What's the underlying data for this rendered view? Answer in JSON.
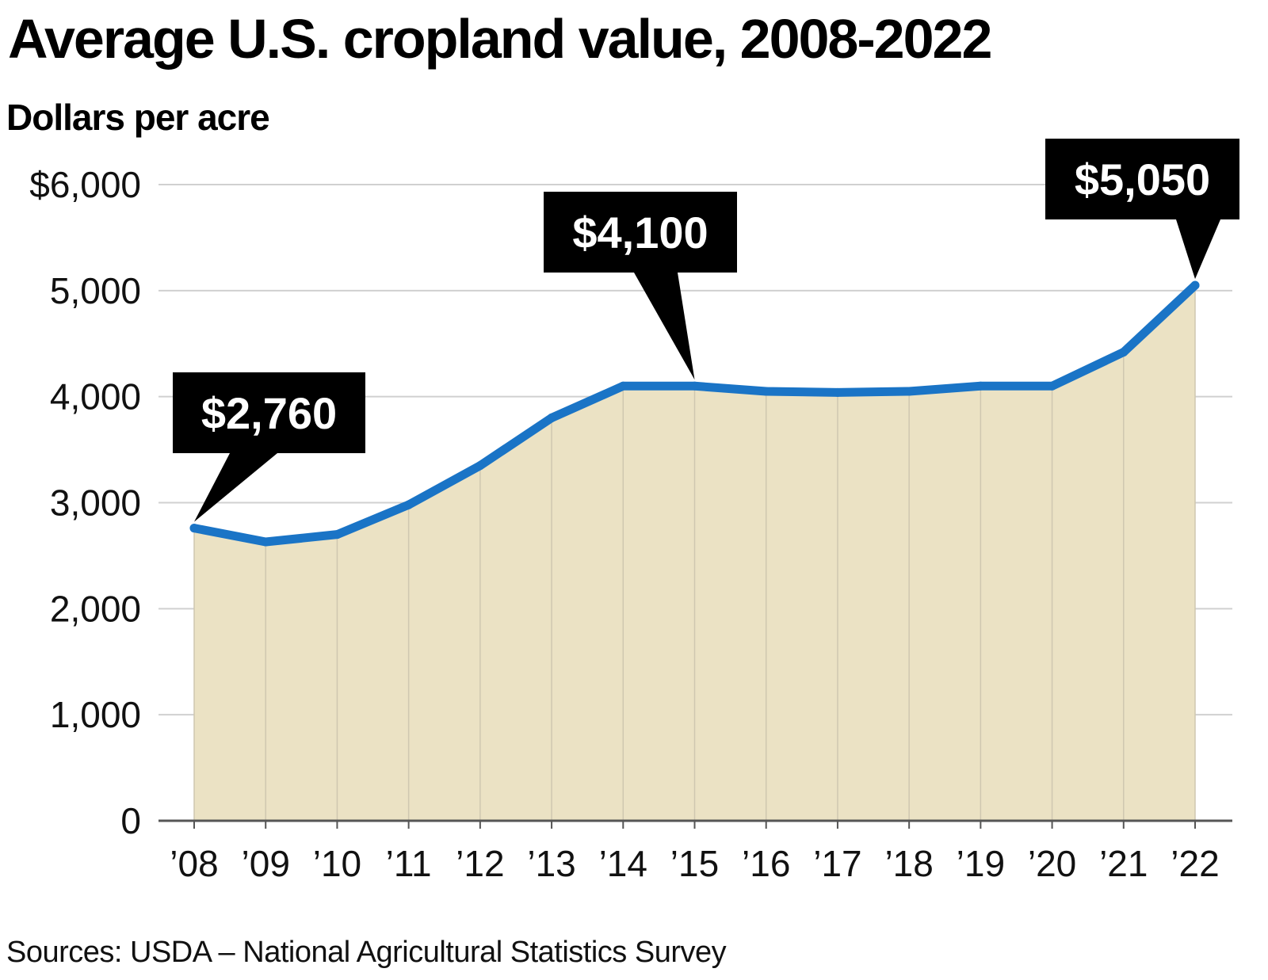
{
  "header": {
    "title": "Average U.S. cropland value, 2008-2022",
    "subtitle": "Dollars per acre"
  },
  "footer": {
    "source": "Sources: USDA – National Agricultural Statistics  Survey"
  },
  "colors": {
    "line": "#1a74c6",
    "area": "#ebe2c4",
    "grid": "#d0d0d0",
    "axis": "#555555",
    "callout_bg": "#000000",
    "callout_text": "#ffffff"
  },
  "chart_data": {
    "type": "area",
    "title": "Average U.S. cropland value, 2008-2022",
    "ylabel": "Dollars per acre",
    "xlabel": "",
    "categories": [
      "’08",
      "’09",
      "’10",
      "’11",
      "’12",
      "’13",
      "’14",
      "’15",
      "’16",
      "’17",
      "’18",
      "’19",
      "’20",
      "’21",
      "’22"
    ],
    "x": [
      2008,
      2009,
      2010,
      2011,
      2012,
      2013,
      2014,
      2015,
      2016,
      2017,
      2018,
      2019,
      2020,
      2021,
      2022
    ],
    "series": [
      {
        "name": "Cropland value",
        "values": [
          2760,
          2630,
          2700,
          2980,
          3350,
          3800,
          4100,
          4100,
          4050,
          4040,
          4050,
          4100,
          4100,
          4420,
          5050
        ]
      }
    ],
    "ylim": [
      0,
      6000
    ],
    "yticks": [
      0,
      1000,
      2000,
      3000,
      4000,
      5000,
      6000
    ],
    "ytick_labels": [
      "0",
      "1,000",
      "2,000",
      "3,000",
      "4,000",
      "5,000",
      "$6,000"
    ],
    "grid": true,
    "annotations": [
      {
        "label": "$2,760",
        "index": 0
      },
      {
        "label": "$4,100",
        "index": 7
      },
      {
        "label": "$5,050",
        "index": 14
      }
    ]
  }
}
